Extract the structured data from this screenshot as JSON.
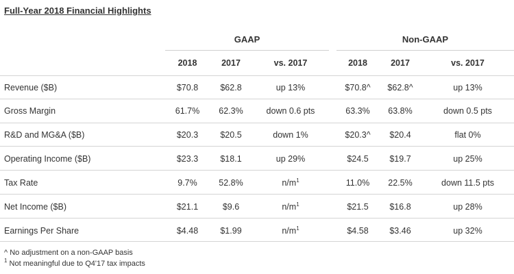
{
  "title": "Full-Year 2018 Financial Highlights",
  "groups": {
    "gaap": "GAAP",
    "nongaap": "Non-GAAP"
  },
  "columns": [
    "2018",
    "2017",
    "vs. 2017",
    "2018",
    "2017",
    "vs. 2017"
  ],
  "rows": [
    {
      "label": "Revenue ($B)",
      "cells": [
        "$70.8",
        "$62.8",
        "up 13%",
        "$70.8^",
        "$62.8^",
        "up 13%"
      ]
    },
    {
      "label": "Gross Margin",
      "cells": [
        "61.7%",
        "62.3%",
        "down 0.6 pts",
        "63.3%",
        "63.8%",
        "down 0.5 pts"
      ]
    },
    {
      "label": "R&D and MG&A ($B)",
      "cells": [
        "$20.3",
        "$20.5",
        "down 1%",
        "$20.3^",
        "$20.4",
        "flat 0%"
      ]
    },
    {
      "label": "Operating Income ($B)",
      "cells": [
        "$23.3",
        "$18.1",
        "up 29%",
        "$24.5",
        "$19.7",
        "up 25%"
      ]
    },
    {
      "label": "Tax Rate",
      "cells": [
        "9.7%",
        "52.8%",
        "n/m",
        "11.0%",
        "22.5%",
        "down 11.5 pts"
      ]
    },
    {
      "label": "Net Income ($B)",
      "cells": [
        "$21.1",
        "$9.6",
        "n/m",
        "$21.5",
        "$16.8",
        "up 28%"
      ]
    },
    {
      "label": "Earnings Per Share",
      "cells": [
        "$4.48",
        "$1.99",
        "n/m",
        "$4.58",
        "$3.46",
        "up 32%"
      ]
    }
  ],
  "superscript": "1",
  "footnotes": {
    "caret_mark": "^",
    "caret_text": "No adjustment on a non-GAAP basis",
    "one_mark": "1",
    "one_text": "Not meaningful due to Q4'17 tax impacts"
  }
}
